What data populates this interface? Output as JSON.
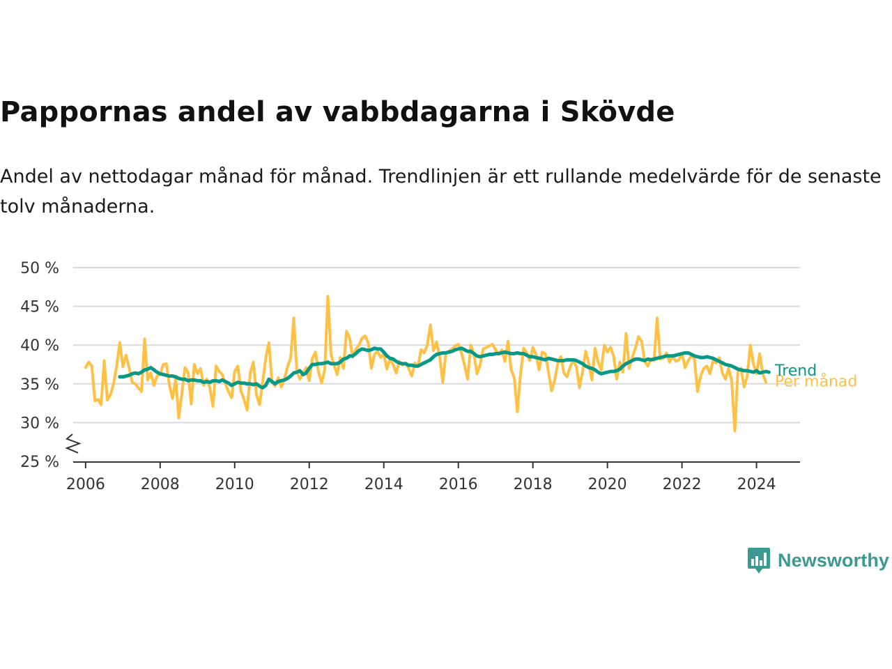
{
  "title": "Pappornas andel av vabbdagarna i Skövde",
  "subtitle": "Andel av nettodagar månad för månad. Trendlinjen är ett rullande medelvärde för de senaste tolv månaderna.",
  "brand": {
    "name": "Newsworthy",
    "icon": "newsworthy-logo-icon",
    "color": "#3a9a90"
  },
  "chart_data": {
    "type": "line",
    "x_start": "2006-01",
    "x_step": "month",
    "xlim": [
      "2005-09",
      "2025-03"
    ],
    "x_ticks": [
      "2006",
      "2008",
      "2010",
      "2012",
      "2014",
      "2016",
      "2018",
      "2020",
      "2022",
      "2024"
    ],
    "ylim": [
      25,
      50
    ],
    "y_ticks": [
      "25 %",
      "30 %",
      "35 %",
      "40 %",
      "45 %",
      "50 %"
    ],
    "y_axis_break": true,
    "grid": true,
    "legend": "inline-right",
    "series": [
      {
        "name": "Per månad",
        "color": "#ffc145",
        "start": "2006-01",
        "values": [
          37.1,
          37.8,
          37.3,
          32.8,
          33.0,
          32.3,
          38.0,
          32.9,
          33.6,
          35.0,
          37.3,
          40.3,
          37.2,
          38.7,
          37.1,
          35.2,
          35.0,
          34.5,
          34.0,
          40.8,
          35.5,
          36.4,
          34.8,
          36.0,
          36.2,
          37.5,
          37.6,
          34.8,
          33.1,
          35.7,
          30.6,
          33.8,
          37.1,
          36.5,
          32.4,
          37.5,
          36.3,
          37.0,
          34.8,
          35.6,
          34.5,
          32.1,
          37.3,
          36.6,
          36.2,
          35.0,
          34.0,
          33.2,
          36.6,
          37.3,
          34.1,
          33.0,
          31.6,
          36.4,
          37.8,
          33.6,
          32.3,
          35.2,
          38.3,
          40.3,
          35.3,
          34.7,
          35.8,
          34.6,
          35.6,
          37.2,
          38.3,
          43.5,
          36.6,
          35.6,
          36.4,
          37.1,
          35.4,
          38.3,
          39.1,
          36.5,
          35.1,
          36.9,
          46.3,
          38.8,
          37.4,
          36.2,
          38.4,
          37.0,
          41.8,
          40.9,
          38.4,
          39.5,
          40.0,
          40.9,
          41.2,
          40.3,
          37.0,
          38.8,
          39.2,
          38.4,
          38.9,
          36.9,
          38.2,
          37.5,
          36.4,
          37.9,
          37.4,
          37.7,
          37.0,
          36.0,
          37.7,
          37.2,
          39.4,
          39.0,
          40.0,
          42.6,
          39.3,
          40.4,
          38.5,
          35.2,
          39.0,
          39.2,
          39.5,
          39.9,
          40.1,
          39.0,
          37.4,
          35.6,
          40.0,
          38.9,
          36.3,
          37.4,
          39.5,
          39.7,
          39.9,
          40.1,
          39.4,
          38.8,
          39.4,
          37.9,
          40.5,
          36.8,
          35.8,
          31.4,
          36.2,
          39.6,
          39.0,
          38.0,
          39.7,
          38.8,
          36.8,
          39.1,
          38.9,
          36.6,
          34.1,
          35.4,
          37.6,
          38.5,
          36.4,
          35.9,
          37.2,
          38.0,
          37.2,
          34.5,
          36.6,
          39.2,
          37.6,
          35.5,
          39.6,
          37.8,
          36.8,
          40.0,
          39.1,
          39.7,
          38.6,
          35.6,
          37.8,
          36.5,
          41.5,
          37.0,
          38.4,
          39.6,
          41.1,
          40.5,
          37.9,
          37.3,
          38.2,
          38.0,
          43.5,
          38.2,
          38.3,
          39.0,
          37.8,
          38.6,
          37.9,
          38.1,
          38.9,
          37.1,
          38.0,
          38.6,
          38.2,
          34.0,
          36.0,
          37.0,
          37.3,
          36.3,
          38.0,
          37.7,
          38.4,
          36.4,
          35.6,
          37.0,
          35.4,
          28.9,
          36.6,
          37.0,
          34.6,
          36.0,
          40.0,
          37.6,
          36.3,
          38.9,
          36.3,
          35.2
        ]
      },
      {
        "name": "Trend",
        "color": "#0a9886",
        "start": "2006-12",
        "values": [
          35.9,
          35.9,
          36.0,
          36.1,
          36.3,
          36.4,
          36.3,
          36.5,
          36.8,
          36.9,
          37.1,
          36.8,
          36.5,
          36.3,
          36.2,
          36.1,
          36.0,
          36.0,
          35.9,
          35.7,
          35.6,
          35.6,
          35.4,
          35.5,
          35.5,
          35.4,
          35.4,
          35.2,
          35.3,
          35.2,
          35.4,
          35.4,
          35.3,
          35.5,
          35.3,
          35.1,
          34.8,
          35.0,
          35.2,
          35.1,
          35.1,
          35.0,
          35.0,
          34.9,
          35.0,
          34.7,
          34.5,
          34.8,
          35.6,
          35.3,
          35.0,
          35.3,
          35.4,
          35.5,
          35.7,
          36.0,
          36.4,
          36.5,
          36.7,
          36.2,
          36.4,
          37.0,
          37.5,
          37.5,
          37.6,
          37.6,
          37.7,
          37.8,
          37.6,
          37.6,
          37.6,
          37.8,
          38.2,
          38.3,
          38.6,
          38.6,
          38.9,
          39.3,
          39.5,
          39.4,
          39.3,
          39.4,
          39.6,
          39.5,
          39.5,
          39.1,
          38.6,
          38.3,
          38.2,
          37.9,
          37.7,
          37.6,
          37.6,
          37.4,
          37.4,
          37.3,
          37.3,
          37.5,
          37.7,
          37.9,
          38.1,
          38.5,
          38.8,
          38.9,
          39.0,
          39.0,
          39.1,
          39.2,
          39.4,
          39.5,
          39.6,
          39.4,
          39.2,
          39.2,
          38.9,
          38.6,
          38.5,
          38.6,
          38.7,
          38.8,
          38.8,
          38.9,
          38.9,
          39.0,
          39.1,
          39.0,
          38.9,
          38.9,
          39.0,
          38.9,
          38.9,
          38.7,
          38.5,
          38.5,
          38.4,
          38.3,
          38.2,
          38.1,
          38.3,
          38.2,
          38.1,
          38.0,
          38.0,
          38.0,
          38.1,
          38.1,
          38.1,
          38.0,
          37.8,
          37.6,
          37.3,
          37.1,
          37.0,
          36.8,
          36.5,
          36.3,
          36.4,
          36.5,
          36.6,
          36.6,
          36.7,
          36.9,
          37.3,
          37.6,
          37.8,
          38.0,
          38.2,
          38.2,
          38.1,
          38.0,
          38.2,
          38.1,
          38.2,
          38.3,
          38.4,
          38.5,
          38.6,
          38.6,
          38.6,
          38.7,
          38.8,
          38.9,
          39.0,
          39.0,
          38.8,
          38.6,
          38.5,
          38.4,
          38.4,
          38.5,
          38.4,
          38.3,
          38.1,
          37.9,
          37.7,
          37.5,
          37.4,
          37.3,
          37.1,
          36.9,
          36.8,
          36.7,
          36.7,
          36.6,
          36.5,
          36.7,
          36.4,
          36.5,
          36.6,
          36.5
        ]
      }
    ]
  }
}
